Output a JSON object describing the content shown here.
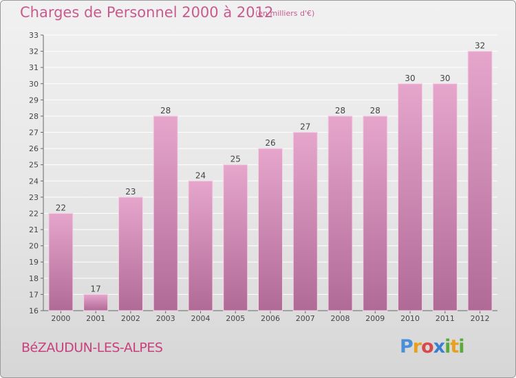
{
  "header": {
    "title": "Charges de Personnel 2000 à 2012",
    "subtitle": "(en milliers d'€)"
  },
  "footer": {
    "commune": "BéZAUDUN-LES-ALPES",
    "logo": "Proxiti"
  },
  "colors": {
    "accent": "#c85a8e",
    "bar_top": "#e6a6cc",
    "bar_bottom": "#b06a96"
  },
  "chart_data": {
    "type": "bar",
    "title": "Charges de Personnel 2000 à 2012",
    "subtitle": "(en milliers d'€)",
    "categories": [
      "2000",
      "2001",
      "2002",
      "2003",
      "2004",
      "2005",
      "2006",
      "2007",
      "2008",
      "2009",
      "2010",
      "2011",
      "2012"
    ],
    "values": [
      22,
      17,
      23,
      28,
      24,
      25,
      26,
      27,
      28,
      28,
      30,
      30,
      32
    ],
    "ylim": [
      16,
      33
    ],
    "yticks": [
      16,
      17,
      18,
      19,
      20,
      21,
      22,
      23,
      24,
      25,
      26,
      27,
      28,
      29,
      30,
      31,
      32,
      33
    ],
    "grid": true,
    "data_labels": true
  }
}
